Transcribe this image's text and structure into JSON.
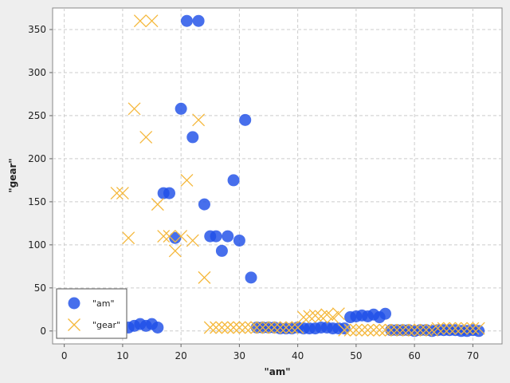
{
  "chart_data": {
    "type": "scatter",
    "title": "",
    "xlabel": "\"am\"",
    "ylabel": "\"gear\"",
    "xlim": [
      -2,
      75
    ],
    "ylim": [
      -15,
      375
    ],
    "x_ticks": [
      0,
      10,
      20,
      30,
      40,
      50,
      60,
      70
    ],
    "y_ticks": [
      0,
      50,
      100,
      150,
      200,
      250,
      300,
      350
    ],
    "grid": true,
    "legend_position": "bottom-left",
    "series": [
      {
        "name": "\"am\"",
        "marker": "circle",
        "color": "#1f4fe8",
        "points": [
          [
            11,
            4
          ],
          [
            12,
            6
          ],
          [
            13,
            8
          ],
          [
            14,
            6
          ],
          [
            15,
            8
          ],
          [
            16,
            4
          ],
          [
            17,
            160
          ],
          [
            18,
            160
          ],
          [
            19,
            108
          ],
          [
            20,
            258
          ],
          [
            21,
            360
          ],
          [
            22,
            225
          ],
          [
            23,
            360
          ],
          [
            24,
            147
          ],
          [
            25,
            110
          ],
          [
            26,
            110
          ],
          [
            27,
            93
          ],
          [
            28,
            110
          ],
          [
            29,
            175
          ],
          [
            30,
            105
          ],
          [
            31,
            245
          ],
          [
            32,
            62
          ],
          [
            33,
            4
          ],
          [
            34,
            4
          ],
          [
            35,
            4
          ],
          [
            36,
            4
          ],
          [
            37,
            3
          ],
          [
            38,
            3
          ],
          [
            39,
            3
          ],
          [
            40,
            4
          ],
          [
            41,
            3
          ],
          [
            42,
            3
          ],
          [
            43,
            3
          ],
          [
            44,
            4
          ],
          [
            45,
            4
          ],
          [
            46,
            3
          ],
          [
            47,
            3
          ],
          [
            48,
            3
          ],
          [
            49,
            16
          ],
          [
            50,
            17
          ],
          [
            51,
            18
          ],
          [
            52,
            17
          ],
          [
            53,
            19
          ],
          [
            54,
            16
          ],
          [
            55,
            20
          ],
          [
            56,
            1
          ],
          [
            57,
            1
          ],
          [
            58,
            1
          ],
          [
            59,
            1
          ],
          [
            60,
            0
          ],
          [
            61,
            1
          ],
          [
            62,
            1
          ],
          [
            63,
            0
          ],
          [
            64,
            1
          ],
          [
            65,
            1
          ],
          [
            66,
            1
          ],
          [
            67,
            1
          ],
          [
            68,
            0
          ],
          [
            69,
            0
          ],
          [
            70,
            1
          ],
          [
            71,
            0
          ]
        ]
      },
      {
        "name": "\"gear\"",
        "marker": "cross",
        "color": "#f5b83c",
        "points": [
          [
            9,
            160
          ],
          [
            10,
            160
          ],
          [
            11,
            108
          ],
          [
            12,
            258
          ],
          [
            13,
            360
          ],
          [
            14,
            225
          ],
          [
            15,
            360
          ],
          [
            16,
            147
          ],
          [
            17,
            110
          ],
          [
            18,
            110
          ],
          [
            19,
            93
          ],
          [
            20,
            110
          ],
          [
            21,
            175
          ],
          [
            22,
            105
          ],
          [
            23,
            245
          ],
          [
            24,
            62
          ],
          [
            25,
            4
          ],
          [
            26,
            4
          ],
          [
            27,
            4
          ],
          [
            28,
            4
          ],
          [
            29,
            4
          ],
          [
            30,
            4
          ],
          [
            31,
            4
          ],
          [
            32,
            4
          ],
          [
            33,
            4
          ],
          [
            34,
            4
          ],
          [
            35,
            4
          ],
          [
            36,
            4
          ],
          [
            37,
            4
          ],
          [
            38,
            4
          ],
          [
            39,
            4
          ],
          [
            40,
            4
          ],
          [
            41,
            16
          ],
          [
            42,
            17
          ],
          [
            43,
            18
          ],
          [
            44,
            17
          ],
          [
            45,
            19
          ],
          [
            46,
            16
          ],
          [
            47,
            20
          ],
          [
            48,
            1
          ],
          [
            49,
            1
          ],
          [
            50,
            1
          ],
          [
            51,
            1
          ],
          [
            52,
            1
          ],
          [
            53,
            1
          ],
          [
            54,
            1
          ],
          [
            55,
            1
          ],
          [
            56,
            1
          ],
          [
            57,
            1
          ],
          [
            58,
            1
          ],
          [
            59,
            1
          ],
          [
            60,
            1
          ],
          [
            61,
            1
          ],
          [
            62,
            1
          ],
          [
            63,
            1
          ],
          [
            64,
            3
          ],
          [
            65,
            3
          ],
          [
            66,
            3
          ],
          [
            67,
            3
          ],
          [
            68,
            3
          ],
          [
            69,
            3
          ],
          [
            70,
            3
          ],
          [
            71,
            3
          ]
        ]
      }
    ]
  }
}
